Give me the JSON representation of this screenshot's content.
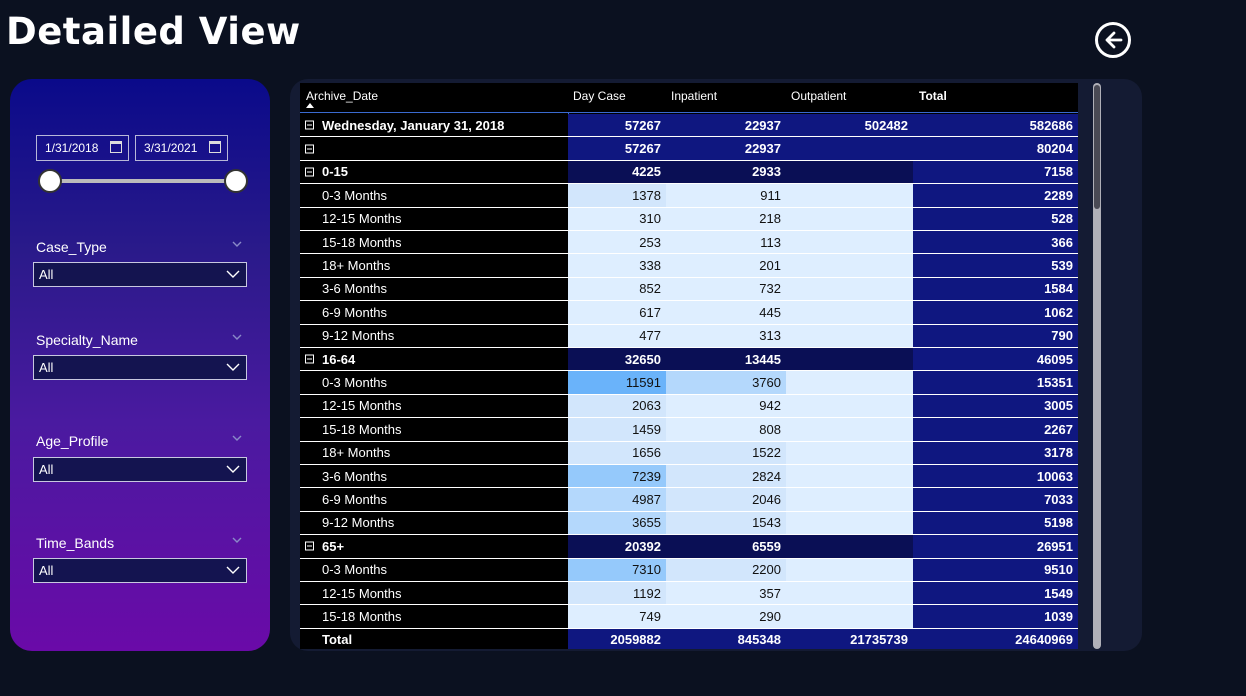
{
  "page": {
    "title": "Detailed View"
  },
  "filters": {
    "date_start": "1/31/2018",
    "date_end": "3/31/2021",
    "slicers": [
      {
        "label": "Case_Type",
        "value": "All"
      },
      {
        "label": "Specialty_Name",
        "value": "All"
      },
      {
        "label": "Age_Profile",
        "value": "All"
      },
      {
        "label": "Time_Bands",
        "value": "All"
      }
    ]
  },
  "matrix": {
    "headers": {
      "row": "Archive_Date",
      "day": "Day Case",
      "in": "Inpatient",
      "out": "Outpatient",
      "total": "Total"
    },
    "rows": [
      {
        "type": "group top",
        "label": "Wednesday, January 31, 2018",
        "day": "57267",
        "in": "22937",
        "out": "502482",
        "total": "582686"
      },
      {
        "type": "group top",
        "label": "",
        "day": "57267",
        "in": "22937",
        "out": "",
        "total": "80204"
      },
      {
        "type": "group",
        "label": "0-15",
        "day": "4225",
        "in": "2933",
        "out": "",
        "total": "7158"
      },
      {
        "type": "leaf",
        "label": "0-3 Months",
        "day": "1378",
        "in": "911",
        "out": "",
        "total": "2289",
        "dayShade": 1,
        "inShade": 0
      },
      {
        "type": "leaf",
        "label": "12-15 Months",
        "day": "310",
        "in": "218",
        "out": "",
        "total": "528",
        "dayShade": 0,
        "inShade": 0
      },
      {
        "type": "leaf",
        "label": "15-18 Months",
        "day": "253",
        "in": "113",
        "out": "",
        "total": "366",
        "dayShade": 0,
        "inShade": 0
      },
      {
        "type": "leaf",
        "label": "18+ Months",
        "day": "338",
        "in": "201",
        "out": "",
        "total": "539",
        "dayShade": 0,
        "inShade": 0
      },
      {
        "type": "leaf",
        "label": "3-6 Months",
        "day": "852",
        "in": "732",
        "out": "",
        "total": "1584",
        "dayShade": 0,
        "inShade": 0
      },
      {
        "type": "leaf",
        "label": "6-9 Months",
        "day": "617",
        "in": "445",
        "out": "",
        "total": "1062",
        "dayShade": 0,
        "inShade": 0
      },
      {
        "type": "leaf",
        "label": "9-12 Months",
        "day": "477",
        "in": "313",
        "out": "",
        "total": "790",
        "dayShade": 0,
        "inShade": 0
      },
      {
        "type": "group",
        "label": "16-64",
        "day": "32650",
        "in": "13445",
        "out": "",
        "total": "46095"
      },
      {
        "type": "leaf",
        "label": "0-3 Months",
        "day": "11591",
        "in": "3760",
        "out": "",
        "total": "15351",
        "dayShade": 4,
        "inShade": 2
      },
      {
        "type": "leaf",
        "label": "12-15 Months",
        "day": "2063",
        "in": "942",
        "out": "",
        "total": "3005",
        "dayShade": 1,
        "inShade": 0
      },
      {
        "type": "leaf",
        "label": "15-18 Months",
        "day": "1459",
        "in": "808",
        "out": "",
        "total": "2267",
        "dayShade": 1,
        "inShade": 0
      },
      {
        "type": "leaf",
        "label": "18+ Months",
        "day": "1656",
        "in": "1522",
        "out": "",
        "total": "3178",
        "dayShade": 1,
        "inShade": 1
      },
      {
        "type": "leaf",
        "label": "3-6 Months",
        "day": "7239",
        "in": "2824",
        "out": "",
        "total": "10063",
        "dayShade": 3,
        "inShade": 1
      },
      {
        "type": "leaf",
        "label": "6-9 Months",
        "day": "4987",
        "in": "2046",
        "out": "",
        "total": "7033",
        "dayShade": 2,
        "inShade": 1
      },
      {
        "type": "leaf",
        "label": "9-12 Months",
        "day": "3655",
        "in": "1543",
        "out": "",
        "total": "5198",
        "dayShade": 2,
        "inShade": 1
      },
      {
        "type": "group",
        "label": "65+",
        "day": "20392",
        "in": "6559",
        "out": "",
        "total": "26951"
      },
      {
        "type": "leaf",
        "label": "0-3 Months",
        "day": "7310",
        "in": "2200",
        "out": "",
        "total": "9510",
        "dayShade": 3,
        "inShade": 1
      },
      {
        "type": "leaf",
        "label": "12-15 Months",
        "day": "1192",
        "in": "357",
        "out": "",
        "total": "1549",
        "dayShade": 1,
        "inShade": 0
      },
      {
        "type": "leaf",
        "label": "15-18 Months",
        "day": "749",
        "in": "290",
        "out": "",
        "total": "1039",
        "dayShade": 0,
        "inShade": 0
      },
      {
        "type": "total",
        "label": "Total",
        "day": "2059882",
        "in": "845348",
        "out": "21735739",
        "total": "24640969"
      }
    ],
    "shades": [
      "#deeeff",
      "#d2e6fc",
      "#b4d8fc",
      "#95c9fb",
      "#6ab3fa"
    ]
  }
}
